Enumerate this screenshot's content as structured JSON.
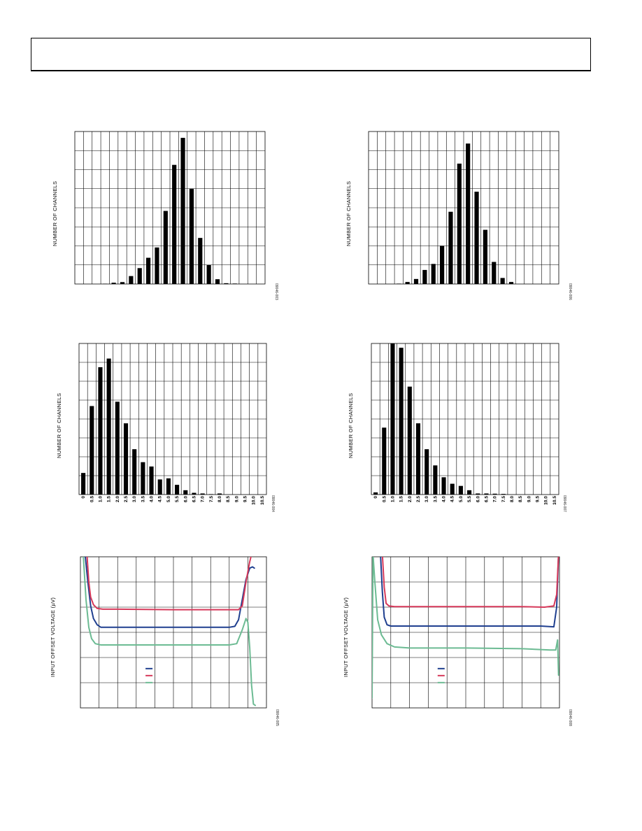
{
  "header": {
    "text": ""
  },
  "charts": [
    {
      "id": "top-left",
      "ylabel": "NUMBER OF CHANNELS",
      "fig_id": "09046-003"
    },
    {
      "id": "top-right",
      "ylabel": "NUMBER OF CHANNELS",
      "fig_id": "09046-006"
    },
    {
      "id": "mid-left",
      "ylabel": "NUMBER OF CHANNELS",
      "fig_id": "09046-004"
    },
    {
      "id": "mid-right",
      "ylabel": "NUMBER OF CHANNELS",
      "fig_id": "09046-007"
    },
    {
      "id": "bottom-left",
      "ylabel": "INPUT OFFSET VOLTAGE (µV)",
      "fig_id": "09046-005"
    },
    {
      "id": "bottom-right",
      "ylabel": "INPUT OFFSET VOLTAGE (µV)",
      "fig_id": "09046-008"
    }
  ],
  "chart_data": [
    {
      "type": "bar",
      "values": [
        0,
        0,
        0,
        0.02,
        0.08,
        0.12,
        0.5,
        1.0,
        1.65,
        2.3,
        4.6,
        7.5,
        9.2,
        6.0,
        2.9,
        1.2,
        0.3,
        0.05,
        0.03,
        0,
        0,
        0
      ],
      "ylim": [
        0,
        9.6
      ],
      "grid": true
    },
    {
      "type": "bar",
      "values": [
        0,
        0,
        0,
        0.02,
        0.1,
        0.25,
        0.7,
        1.0,
        1.9,
        3.6,
        6.0,
        7.0,
        4.6,
        2.7,
        1.1,
        0.3,
        0.1,
        0,
        0,
        0,
        0,
        0
      ],
      "ylim": [
        0,
        7.6
      ],
      "grid": true
    },
    {
      "type": "bar",
      "categories": [
        "0",
        "0.5",
        "1.0",
        "1.5",
        "2.0",
        "2.5",
        "3.0",
        "3.5",
        "4.0",
        "4.5",
        "5.0",
        "5.5",
        "6.0",
        "6.5",
        "7.0",
        "7.5",
        "8.0",
        "8.5",
        "9.0",
        "9.5",
        "10.0",
        "10.5"
      ],
      "values": [
        1.0,
        4.1,
        5.9,
        6.3,
        4.3,
        3.3,
        2.1,
        1.5,
        1.3,
        0.7,
        0.75,
        0.45,
        0.2,
        0.08,
        0.05,
        0.02,
        0.05,
        0,
        0,
        0,
        0,
        0
      ],
      "ylim": [
        0,
        7.0
      ],
      "grid": true
    },
    {
      "type": "bar",
      "categories": [
        "0",
        "0.5",
        "1.0",
        "1.5",
        "2.0",
        "2.5",
        "3.0",
        "3.5",
        "4.0",
        "4.5",
        "5.0",
        "5.5",
        "6.0",
        "6.5",
        "7.0",
        "7.5",
        "8.0",
        "8.5",
        "9.0",
        "9.5",
        "10.0",
        "10.5"
      ],
      "values": [
        0.1,
        3.1,
        7.0,
        6.8,
        5.0,
        3.3,
        2.1,
        1.35,
        0.8,
        0.5,
        0.4,
        0.2,
        0.05,
        0.05,
        0.04,
        0.03,
        0,
        0,
        0,
        0,
        0,
        0
      ],
      "ylim": [
        0,
        7.0
      ],
      "grid": true
    },
    {
      "type": "line",
      "xlim": [
        0,
        10
      ],
      "ylim": [
        0,
        6
      ],
      "grid": true,
      "series": [
        {
          "color": "#1f3f8f",
          "x": [
            0.25,
            0.4,
            0.55,
            0.7,
            0.9,
            1.1,
            2,
            5,
            8,
            8.3,
            8.5,
            8.7,
            8.9,
            9.1,
            9.25,
            9.35
          ],
          "y": [
            6.1,
            5.0,
            4.05,
            3.55,
            3.3,
            3.2,
            3.2,
            3.2,
            3.2,
            3.24,
            3.5,
            4.3,
            5.1,
            5.55,
            5.6,
            5.55
          ]
        },
        {
          "color": "#d6395a",
          "x": [
            0.35,
            0.45,
            0.55,
            0.7,
            0.9,
            1.2,
            2,
            5,
            8,
            8.5,
            8.7,
            8.9,
            9.1,
            9.2
          ],
          "y": [
            6.1,
            5.0,
            4.4,
            4.1,
            3.95,
            3.92,
            3.92,
            3.9,
            3.9,
            3.9,
            4.05,
            5.0,
            5.8,
            6.1
          ]
        },
        {
          "color": "#6cbb93",
          "x": [
            0.15,
            0.3,
            0.45,
            0.6,
            0.8,
            1.1,
            2,
            5,
            8,
            8.4,
            8.7,
            8.9,
            9.0,
            9.1,
            9.2,
            9.3,
            9.4
          ],
          "y": [
            6.1,
            4.3,
            3.2,
            2.75,
            2.55,
            2.5,
            2.5,
            2.5,
            2.5,
            2.55,
            3.1,
            3.55,
            3.4,
            2.4,
            0.9,
            0.15,
            0.1
          ]
        }
      ]
    },
    {
      "type": "line",
      "xlim": [
        0,
        10
      ],
      "ylim": [
        0,
        6
      ],
      "grid": true,
      "series": [
        {
          "color": "#1f3f8f",
          "x": [
            0.45,
            0.55,
            0.65,
            0.8,
            1.0,
            2,
            5,
            8,
            9.0,
            9.7,
            9.85,
            9.95
          ],
          "y": [
            6.1,
            4.6,
            3.6,
            3.3,
            3.25,
            3.25,
            3.25,
            3.25,
            3.25,
            3.22,
            4.0,
            6.1
          ]
        },
        {
          "color": "#d6395a",
          "x": [
            0.55,
            0.65,
            0.75,
            0.9,
            1.2,
            2,
            5,
            8,
            9.2,
            9.7,
            9.85,
            9.95
          ],
          "y": [
            6.1,
            4.8,
            4.15,
            4.05,
            4.02,
            4.02,
            4.02,
            4.02,
            4.0,
            4.05,
            4.5,
            6.1
          ]
        },
        {
          "color": "#6cbb93",
          "x": [
            0.0,
            0.05,
            0.15,
            0.3,
            0.5,
            0.8,
            1.2,
            2,
            5,
            8,
            9.5,
            9.8,
            9.9,
            9.95
          ],
          "y": [
            0.4,
            6.1,
            5.0,
            3.5,
            2.9,
            2.55,
            2.42,
            2.38,
            2.38,
            2.35,
            2.3,
            2.3,
            2.7,
            1.3
          ]
        }
      ]
    }
  ]
}
